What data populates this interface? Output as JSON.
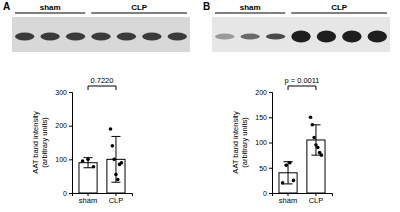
{
  "chart_data": [
    {
      "type": "bar",
      "title": "A",
      "blot_groups": [
        "sham",
        "CLP"
      ],
      "categories": [
        "sham",
        "CLP"
      ],
      "values": [
        90,
        100
      ],
      "errors": [
        15,
        68
      ],
      "points": [
        [
          95,
          100,
          78
        ],
        [
          190,
          140,
          100,
          55,
          40,
          85,
          90
        ]
      ],
      "y_label": [
        "AAT band intensity",
        "(arbitrary units)"
      ],
      "annotation": "0.7220",
      "color": "#ffffff",
      "ylim": [
        0,
        300
      ],
      "yticks": [
        0,
        100,
        200,
        300
      ]
    },
    {
      "type": "bar",
      "title": "B",
      "blot_groups": [
        "sham",
        "CLP"
      ],
      "categories": [
        "sham",
        "CLP"
      ],
      "values": [
        40,
        105
      ],
      "errors": [
        22,
        30
      ],
      "points": [
        [
          20,
          55,
          60,
          25
        ],
        [
          150,
          135,
          110,
          95,
          90,
          80,
          75
        ]
      ],
      "y_label": [
        "AAT band intensity",
        "(arbitrary units)"
      ],
      "annotation": "p = 0.0011",
      "color": "#ffffff",
      "ylim": [
        0,
        200
      ],
      "yticks": [
        0,
        50,
        100,
        150,
        200
      ]
    }
  ]
}
